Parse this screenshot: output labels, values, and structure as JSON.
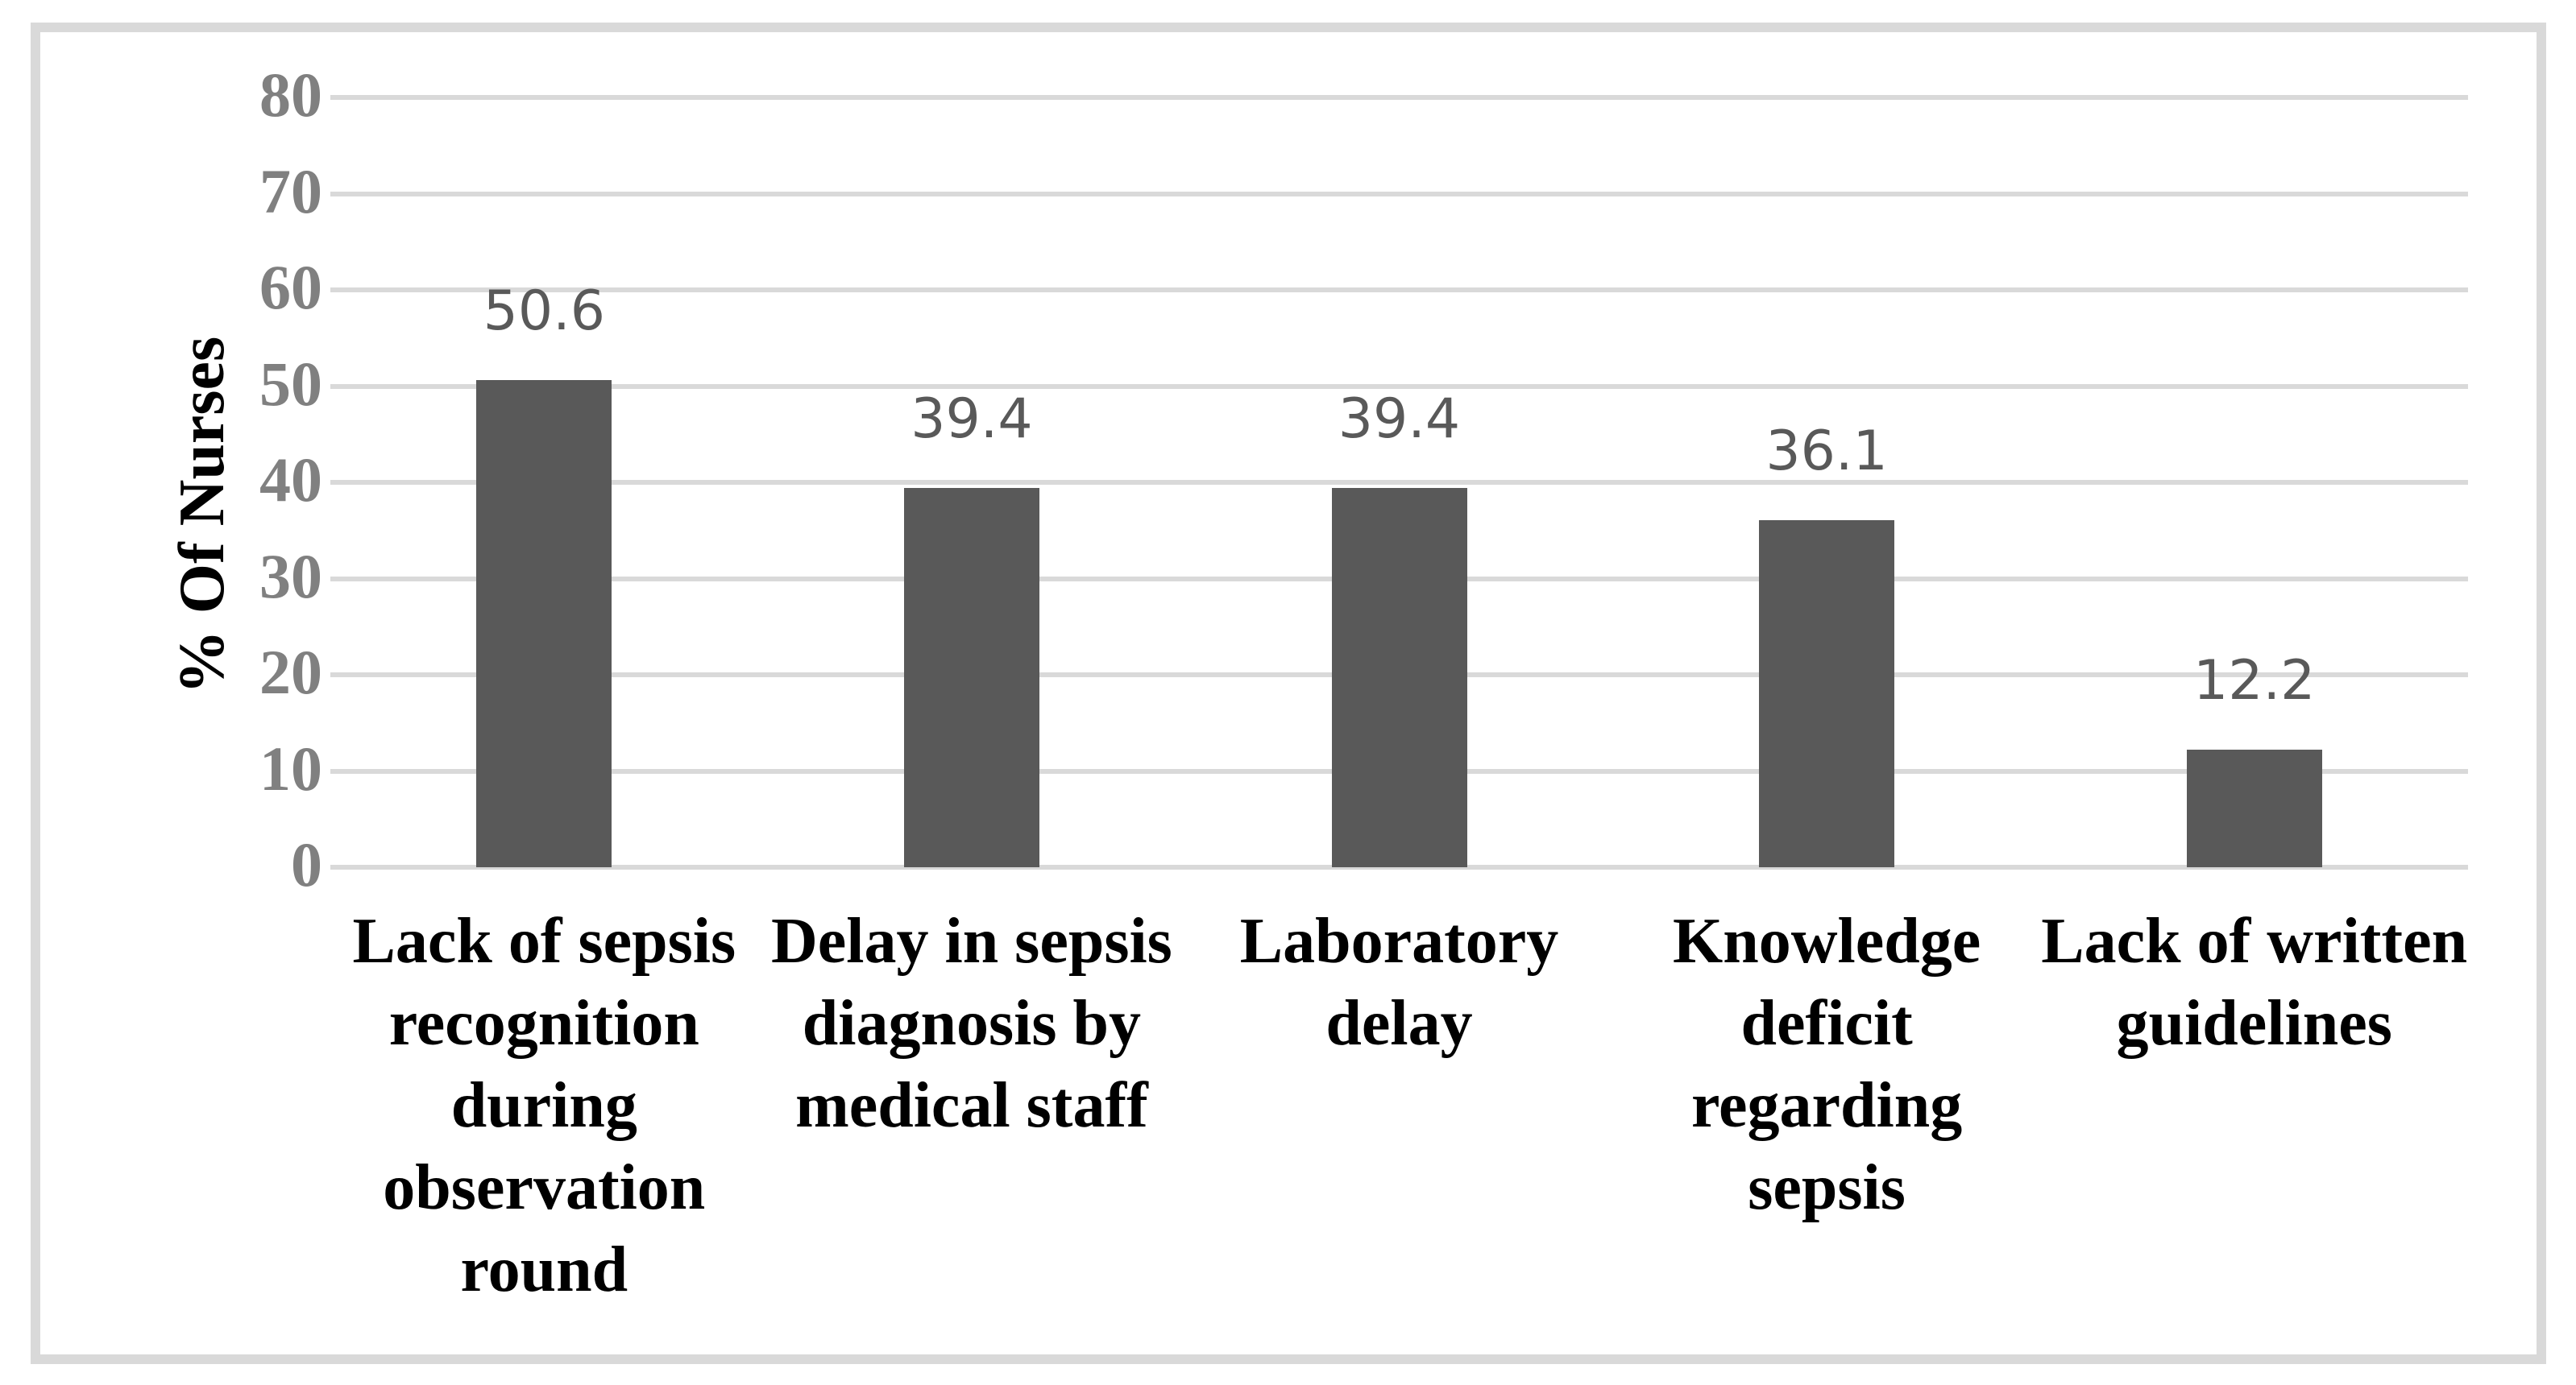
{
  "figure": {
    "background": "#ffffff",
    "frame_border_color": "#d9d9d9",
    "gridline_color": "#d9d9d9",
    "bar_color": "#595959",
    "tick_label_color": "#808080",
    "data_label_color": "#595959",
    "category_label_color": "#000000"
  },
  "chart_data": {
    "type": "bar",
    "title": "",
    "xlabel": "",
    "ylabel": "% Of Nurses",
    "ylim": [
      0,
      80
    ],
    "yticks": [
      0,
      10,
      20,
      30,
      40,
      50,
      60,
      70,
      80
    ],
    "grid": "horizontal gridlines on, every 10 units",
    "legend": "none",
    "categories": [
      "Lack of sepsis recognition during observation round",
      "Delay in sepsis diagnosis by medical staff",
      "Laboratory delay",
      "Knowledge deficit regarding sepsis",
      "Lack of written guidelines"
    ],
    "categories_lines": [
      [
        "Lack of sepsis",
        "recognition",
        "during",
        "observation",
        "round"
      ],
      [
        "Delay in sepsis",
        "diagnosis by",
        "medical staff"
      ],
      [
        "Laboratory",
        "delay"
      ],
      [
        "Knowledge",
        "deficit",
        "regarding",
        "sepsis"
      ],
      [
        "Lack of written",
        "guidelines"
      ]
    ],
    "values": [
      50.6,
      39.4,
      39.4,
      36.1,
      12.2
    ],
    "data_labels": [
      "50.6",
      "39.4",
      "39.4",
      "36.1",
      "12.2"
    ]
  }
}
